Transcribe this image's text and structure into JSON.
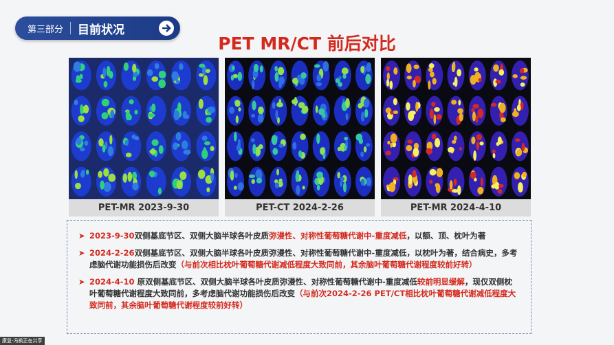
{
  "header": {
    "section": "第三部分",
    "title": "目前状况"
  },
  "title": "PET MR/CT 前后对比",
  "images": [
    {
      "caption": "PET-MR 2023-9-30"
    },
    {
      "caption": "PET-CT 2024-2-26"
    },
    {
      "caption": "PET-MR 2024-4-10"
    }
  ],
  "findings": [
    [
      {
        "text": "2023-9-30",
        "highlight": true
      },
      {
        "text": "双侧基底节区、双侧大脑半球各叶皮质",
        "highlight": false
      },
      {
        "text": "弥漫性、对称性葡萄糖代谢中-重度减低",
        "highlight": true
      },
      {
        "text": "，以额、顶、枕叶为著",
        "highlight": false
      }
    ],
    [
      {
        "text": "2024-2-26",
        "highlight": true
      },
      {
        "text": "双侧基底节区、双侧大脑半球各叶皮质弥漫性、对称性葡萄糖代谢中-重度减低，以枕叶为著，结合病史，多考虑脑代谢功能损伤后改变",
        "highlight": false
      },
      {
        "text": "（与前次相比枕叶葡萄糖代谢减低程度大致同前，其余脑叶葡萄糖代谢程度较前好转）",
        "highlight": true
      }
    ],
    [
      {
        "text": "2024-4-10",
        "highlight": true
      },
      {
        "text": " 原双侧基底节区、双侧大脑半球各叶皮质弥漫性、对称性葡萄糖代谢中-重度减低",
        "highlight": false
      },
      {
        "text": "较前明显缓解",
        "highlight": true
      },
      {
        "text": "，现仅双侧枕叶葡萄糖代谢程度大致同前，多考虑脑代谢功能损伤后改变",
        "highlight": false
      },
      {
        "text": "（与前次2024-2-26 PET/CT相比枕叶葡萄糖代谢减低程度大致同前，其余脑叶葡萄糖代谢程度较前好转）",
        "highlight": true
      }
    ]
  ],
  "share_notice": "康复-冯枫正在共享"
}
